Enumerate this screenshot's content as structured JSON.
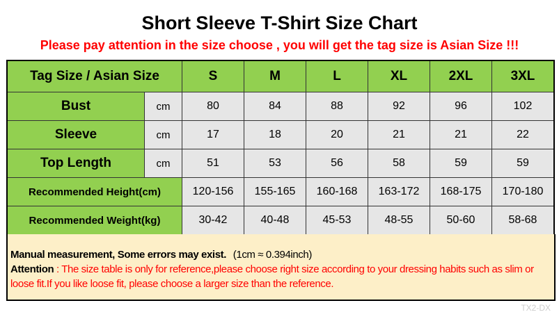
{
  "title": "Short Sleeve T-Shirt Size Chart",
  "subtitle": "Please pay attention in the size choose , you will get the tag size is Asian Size !!!",
  "table": {
    "header_label": "Tag Size / Asian Size",
    "sizes": [
      "S",
      "M",
      "L",
      "XL",
      "2XL",
      "3XL"
    ],
    "rows": [
      {
        "label": "Bust",
        "unit": "cm",
        "values": [
          "80",
          "84",
          "88",
          "92",
          "96",
          "102"
        ]
      },
      {
        "label": "Sleeve",
        "unit": "cm",
        "values": [
          "17",
          "18",
          "20",
          "21",
          "21",
          "22"
        ]
      },
      {
        "label": "Top Length",
        "unit": "cm",
        "values": [
          "51",
          "53",
          "56",
          "58",
          "59",
          "59"
        ]
      },
      {
        "label": "Recommended Height(cm)",
        "values": [
          "120-156",
          "155-165",
          "160-168",
          "163-172",
          "168-175",
          "170-180"
        ]
      },
      {
        "label": "Recommended Weight(kg)",
        "values": [
          "30-42",
          "40-48",
          "45-53",
          "48-55",
          "50-60",
          "58-68"
        ]
      }
    ]
  },
  "note": {
    "bold1": "Manual measurement, Some errors may exist.",
    "conversion": "(1cm ≈ 0.394inch)",
    "attention_label": "Attention",
    "attention_text": " : The size table is only for reference,please choose right size according to your dressing habits such as slim or loose fit.If you like loose fit, please choose a larger size than the reference."
  },
  "watermark": "TX2-DX",
  "colors": {
    "header_green": "#92d050",
    "cell_gray": "#e6e6e6",
    "note_bg": "#fdefc8",
    "accent_red": "#ff0000"
  }
}
